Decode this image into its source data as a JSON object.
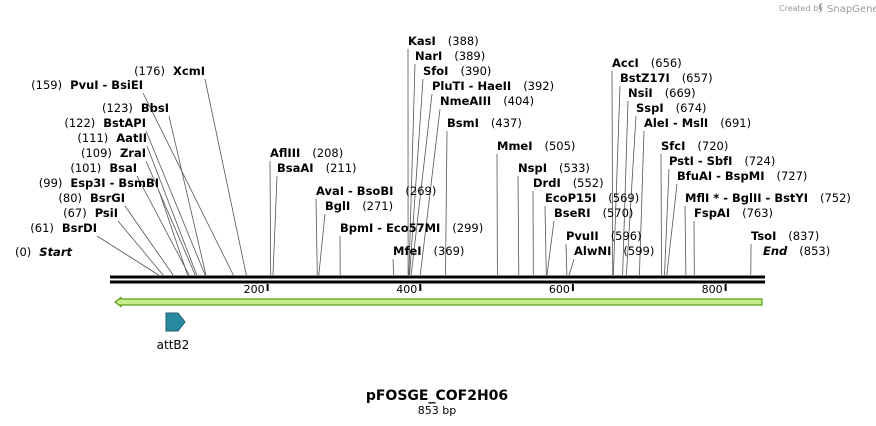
{
  "credit": {
    "prefix": "Created by",
    "brand": "SnapGene"
  },
  "plasmid": {
    "name": "pFOSGE_COF2H06",
    "size_label": "853 bp",
    "length": 853
  },
  "colors": {
    "backbone": "#000000",
    "orf_fill": "#c8ec8c",
    "orf_stroke": "#5a9e1c",
    "feature_fill": "#2a8aa0",
    "leader": "#555555"
  },
  "ticks": [
    {
      "pos": 200,
      "label": "200"
    },
    {
      "pos": 400,
      "label": "400"
    },
    {
      "pos": 600,
      "label": "600"
    },
    {
      "pos": 800,
      "label": "800"
    }
  ],
  "feature": {
    "name": "attB2",
    "icon": "arrow-right-icon"
  },
  "sites": [
    {
      "label": "Start",
      "pos_label": "(0)",
      "pos": 0,
      "italic": true
    },
    {
      "label": "BsrDI",
      "pos_label": "(61)",
      "pos": 61
    },
    {
      "label": "PsiI",
      "pos_label": "(67)",
      "pos": 67
    },
    {
      "label": "BsrGI",
      "pos_label": "(80)",
      "pos": 80
    },
    {
      "label": "Esp3I  -  BsmBI",
      "pos_label": "(99)",
      "pos": 99
    },
    {
      "label": "BsaI",
      "pos_label": "(101)",
      "pos": 101
    },
    {
      "label": "ZraI",
      "pos_label": "(109)",
      "pos": 109
    },
    {
      "label": "AatII",
      "pos_label": "(111)",
      "pos": 111
    },
    {
      "label": "BstAPI",
      "pos_label": "(122)",
      "pos": 122
    },
    {
      "label": "BbsI",
      "pos_label": "(123)",
      "pos": 123
    },
    {
      "label": "PvuI  -  BsiEI",
      "pos_label": "(159)",
      "pos": 159
    },
    {
      "label": "XcmI",
      "pos_label": "(176)",
      "pos": 176
    },
    {
      "label": "AflIII",
      "pos_label": "(208)",
      "pos": 208
    },
    {
      "label": "BsaAI",
      "pos_label": "(211)",
      "pos": 211
    },
    {
      "label": "AvaI  -  BsoBI",
      "pos_label": "(269)",
      "pos": 269
    },
    {
      "label": "BglI",
      "pos_label": "(271)",
      "pos": 271
    },
    {
      "label": "BpmI  -  Eco57MI",
      "pos_label": "(299)",
      "pos": 299
    },
    {
      "label": "MfeI",
      "pos_label": "(369)",
      "pos": 369
    },
    {
      "label": "KasI",
      "pos_label": "(388)",
      "pos": 388
    },
    {
      "label": "NarI",
      "pos_label": "(389)",
      "pos": 389
    },
    {
      "label": "SfoI",
      "pos_label": "(390)",
      "pos": 390
    },
    {
      "label": "PluTI  -  HaeII",
      "pos_label": "(392)",
      "pos": 392
    },
    {
      "label": "NmeAIII",
      "pos_label": "(404)",
      "pos": 404
    },
    {
      "label": "BsmI",
      "pos_label": "(437)",
      "pos": 437
    },
    {
      "label": "MmeI",
      "pos_label": "(505)",
      "pos": 505
    },
    {
      "label": "NspI",
      "pos_label": "(533)",
      "pos": 533
    },
    {
      "label": "DrdI",
      "pos_label": "(552)",
      "pos": 552
    },
    {
      "label": "EcoP15I",
      "pos_label": "(569)",
      "pos": 569
    },
    {
      "label": "BseRI",
      "pos_label": "(570)",
      "pos": 570
    },
    {
      "label": "PvuII",
      "pos_label": "(596)",
      "pos": 596
    },
    {
      "label": "AlwNI",
      "pos_label": "(599)",
      "pos": 599
    },
    {
      "label": "AccI",
      "pos_label": "(656)",
      "pos": 656
    },
    {
      "label": "BstZ17I",
      "pos_label": "(657)",
      "pos": 657
    },
    {
      "label": "NsiI",
      "pos_label": "(669)",
      "pos": 669
    },
    {
      "label": "SspI",
      "pos_label": "(674)",
      "pos": 674
    },
    {
      "label": "AleI  -  MslI",
      "pos_label": "(691)",
      "pos": 691
    },
    {
      "label": "SfcI",
      "pos_label": "(720)",
      "pos": 720
    },
    {
      "label": "PstI  -  SbfI",
      "pos_label": "(724)",
      "pos": 724
    },
    {
      "label": "BfuAI  -  BspMI",
      "pos_label": "(727)",
      "pos": 727
    },
    {
      "label": "MflI *  -  BglII  -  BstYI",
      "pos_label": "(752)",
      "pos": 752
    },
    {
      "label": "FspAI",
      "pos_label": "(763)",
      "pos": 763
    },
    {
      "label": "TsoI",
      "pos_label": "(837)",
      "pos": 837
    },
    {
      "label": "End",
      "pos_label": "(853)",
      "pos": 853,
      "italic": true
    }
  ]
}
